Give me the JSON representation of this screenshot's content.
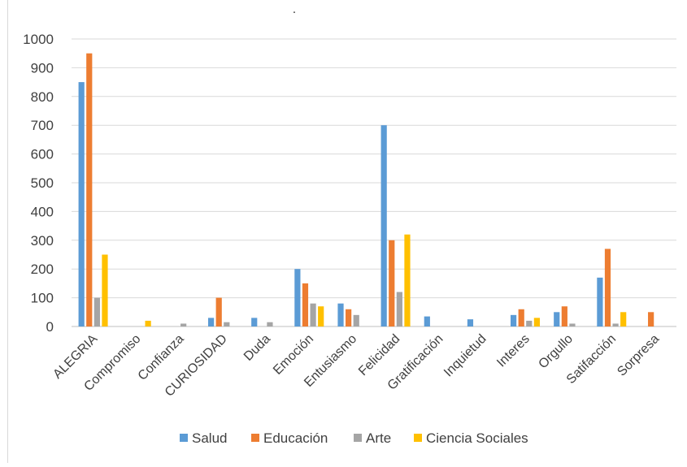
{
  "chart_data": {
    "type": "bar",
    "title": "",
    "xlabel": "",
    "ylabel": "",
    "ylim": [
      0,
      1000
    ],
    "yticks": [
      0,
      100,
      200,
      300,
      400,
      500,
      600,
      700,
      800,
      900,
      1000
    ],
    "grid": true,
    "legend_position": "bottom",
    "categories": [
      "ALEGRIA",
      "Compromiso",
      "Confianza",
      "CURIOSIDAD",
      "Duda",
      "Emoción",
      "Entusiasmo",
      "Felicidad",
      "Gratificación",
      "Inquietud",
      "Interes",
      "Orgullo",
      "Satifacción",
      "Sorpresa"
    ],
    "series": [
      {
        "name": "Salud",
        "color": "#5b9bd5",
        "values": [
          850,
          0,
          0,
          30,
          30,
          200,
          80,
          700,
          35,
          25,
          40,
          50,
          170,
          0
        ]
      },
      {
        "name": "Educación",
        "color": "#ed7d31",
        "values": [
          950,
          0,
          0,
          100,
          0,
          150,
          60,
          300,
          0,
          0,
          60,
          70,
          270,
          50
        ]
      },
      {
        "name": "Arte",
        "color": "#a5a5a5",
        "values": [
          100,
          0,
          10,
          15,
          15,
          80,
          40,
          120,
          0,
          0,
          20,
          10,
          10,
          0
        ]
      },
      {
        "name": "Ciencia Sociales",
        "color": "#ffc000",
        "values": [
          250,
          20,
          0,
          0,
          0,
          70,
          0,
          320,
          0,
          0,
          30,
          0,
          50,
          0
        ]
      }
    ],
    "title_mark": "."
  }
}
